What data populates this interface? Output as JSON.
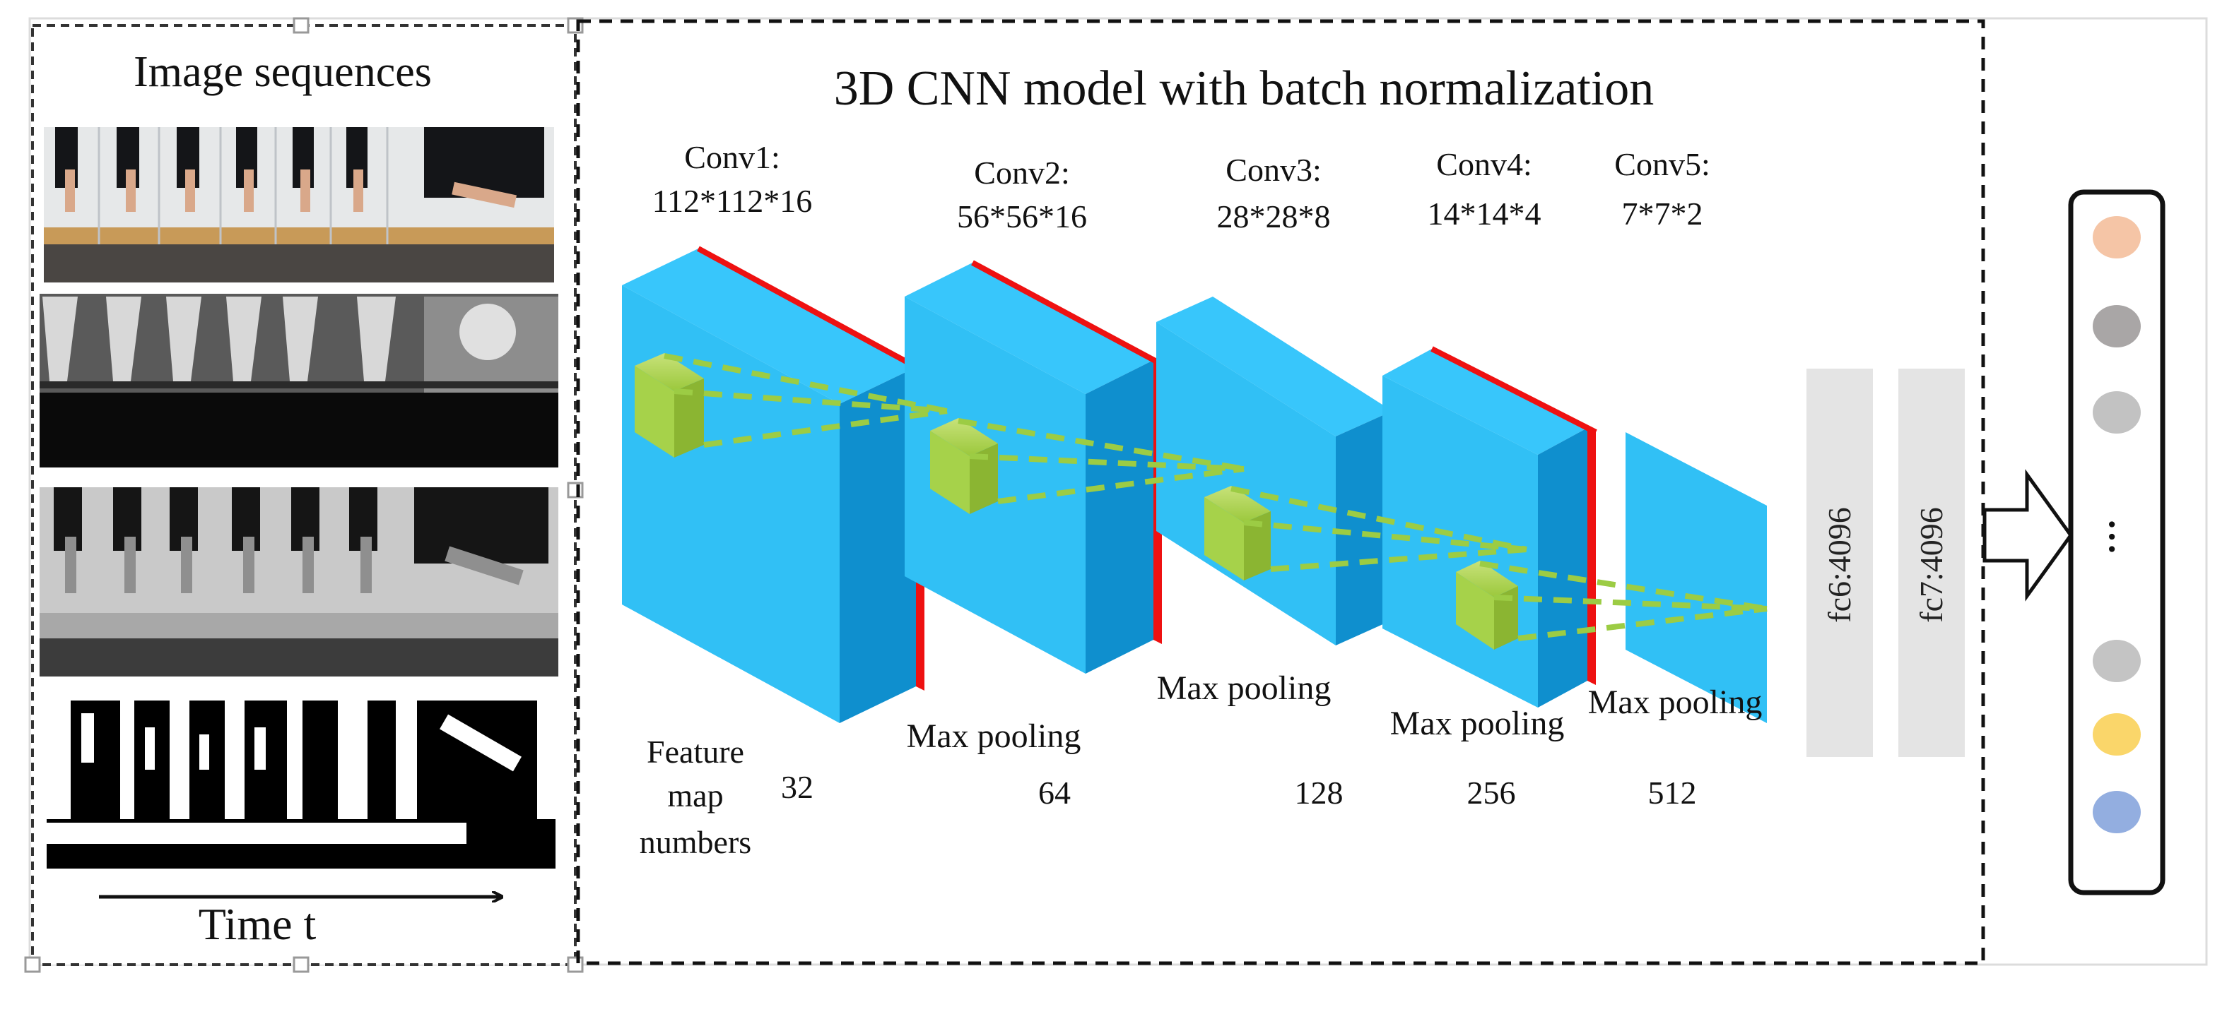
{
  "left_panel": {
    "title": "Image sequences",
    "time_axis_label": "Time t",
    "rows": [
      {
        "name": "rgb-frames",
        "style": "rgb"
      },
      {
        "name": "depth-frames",
        "style": "depth"
      },
      {
        "name": "gray-frames",
        "style": "gray"
      },
      {
        "name": "binary-frames",
        "style": "binary"
      }
    ]
  },
  "model": {
    "title": "3D CNN model with batch normalization",
    "layers": [
      {
        "name": "Conv1:",
        "dims": "112*112*16",
        "feature_maps": "32"
      },
      {
        "name": "Conv2:",
        "dims": "56*56*16",
        "feature_maps": "64"
      },
      {
        "name": "Conv3:",
        "dims": "28*28*8",
        "feature_maps": "128"
      },
      {
        "name": "Conv4:",
        "dims": "14*14*4",
        "feature_maps": "256"
      },
      {
        "name": "Conv5:",
        "dims": "7*7*2",
        "feature_maps": "512"
      }
    ],
    "pooling_label": "Max pooling",
    "feature_map_label": [
      "Feature",
      "map",
      "numbers"
    ],
    "fc_layers": [
      "fc6:4096",
      "fc7:4096"
    ]
  },
  "output": {
    "ellipsis": "...",
    "class_colors": [
      "#f5c5a6",
      "#a9a6a6",
      "#c2c2c2",
      "#c4c4c4",
      "#fad66a",
      "#93aee0"
    ]
  },
  "colors": {
    "cube_front": "#31c0f5",
    "cube_top": "#3dccff",
    "cube_side": "#0f8fce",
    "bn_red": "#ee1111",
    "kernel_green": "#a6d24a",
    "dashed_line": "#9ccc44"
  }
}
